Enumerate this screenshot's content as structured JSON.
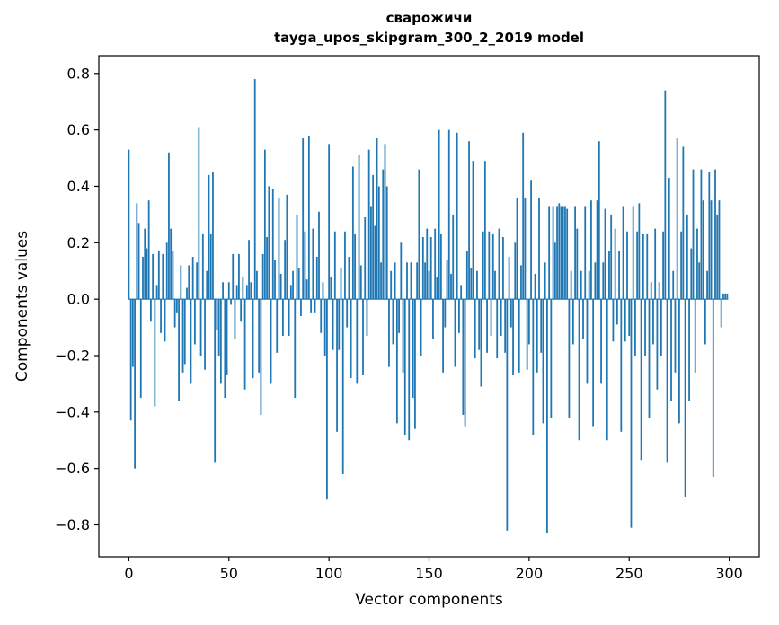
{
  "chart_data": {
    "type": "bar",
    "title": "сварожичи",
    "subtitle": "tayga_upos_skipgram_300_2_2019 model",
    "xlabel": "Vector components",
    "ylabel": "Components values",
    "bar_color": "#1f77b4",
    "xlim": [
      -15,
      315
    ],
    "ylim": [
      -0.913,
      0.863
    ],
    "grid": false,
    "legend": "none",
    "xticks": [
      0,
      50,
      100,
      150,
      200,
      250,
      300
    ],
    "xtick_labels": [
      "0",
      "50",
      "100",
      "150",
      "200",
      "250",
      "300"
    ],
    "yticks": [
      -0.8,
      -0.6,
      -0.4,
      -0.2,
      0.0,
      0.2,
      0.4,
      0.6,
      0.8
    ],
    "ytick_labels": [
      "−0.8",
      "−0.6",
      "−0.4",
      "−0.2",
      "0.0",
      "0.2",
      "0.4",
      "0.6",
      "0.8"
    ],
    "x": "component index 0..299",
    "values": [
      0.53,
      -0.43,
      -0.24,
      -0.6,
      0.34,
      0.27,
      -0.35,
      0.15,
      0.25,
      0.18,
      0.35,
      -0.08,
      0.16,
      -0.38,
      0.05,
      0.17,
      -0.12,
      0.16,
      -0.15,
      0.2,
      0.52,
      0.25,
      0.17,
      -0.1,
      -0.05,
      -0.36,
      0.12,
      -0.26,
      -0.23,
      0.04,
      0.12,
      -0.3,
      0.15,
      -0.16,
      0.13,
      0.61,
      -0.2,
      0.23,
      -0.25,
      0.1,
      0.44,
      0.23,
      0.45,
      -0.58,
      -0.11,
      -0.2,
      -0.3,
      0.06,
      -0.35,
      -0.27,
      0.06,
      -0.02,
      0.16,
      -0.14,
      0.05,
      0.16,
      -0.08,
      0.08,
      -0.32,
      0.05,
      0.21,
      0.06,
      -0.28,
      0.78,
      0.1,
      -0.26,
      -0.41,
      0.16,
      0.53,
      0.22,
      0.4,
      -0.3,
      0.39,
      0.14,
      -0.19,
      0.36,
      0.09,
      -0.13,
      0.21,
      0.37,
      -0.13,
      0.05,
      0.1,
      -0.35,
      0.3,
      0.11,
      -0.06,
      0.57,
      0.24,
      0.07,
      0.58,
      -0.05,
      0.25,
      -0.05,
      0.15,
      0.31,
      -0.12,
      0.06,
      -0.2,
      -0.71,
      0.55,
      0.08,
      -0.18,
      0.24,
      -0.47,
      -0.18,
      0.11,
      -0.62,
      0.24,
      -0.1,
      0.15,
      -0.28,
      0.47,
      0.23,
      -0.3,
      0.51,
      0.12,
      -0.27,
      0.29,
      -0.13,
      0.53,
      0.33,
      0.44,
      0.26,
      0.57,
      0.4,
      0.13,
      0.46,
      0.55,
      0.4,
      -0.24,
      0.1,
      -0.16,
      0.13,
      -0.44,
      -0.12,
      0.2,
      -0.26,
      -0.48,
      0.13,
      -0.5,
      0.13,
      -0.35,
      -0.46,
      0.13,
      0.46,
      -0.2,
      0.22,
      0.13,
      0.25,
      0.1,
      0.22,
      -0.14,
      0.25,
      0.08,
      0.6,
      0.23,
      -0.26,
      -0.1,
      0.14,
      0.6,
      0.09,
      0.3,
      -0.24,
      0.59,
      -0.12,
      0.05,
      -0.41,
      -0.45,
      0.17,
      0.56,
      0.11,
      0.49,
      -0.21,
      0.1,
      -0.18,
      -0.31,
      0.24,
      0.49,
      -0.19,
      0.24,
      -0.13,
      0.23,
      0.1,
      -0.21,
      0.25,
      -0.13,
      0.22,
      -0.19,
      -0.82,
      0.15,
      -0.1,
      -0.27,
      0.2,
      0.36,
      -0.26,
      0.12,
      0.59,
      0.36,
      -0.25,
      -0.16,
      0.42,
      -0.48,
      0.09,
      -0.26,
      0.36,
      -0.19,
      -0.44,
      0.13,
      -0.83,
      0.33,
      -0.42,
      0.33,
      0.2,
      0.33,
      0.34,
      0.33,
      0.33,
      0.33,
      0.32,
      -0.42,
      0.1,
      -0.16,
      0.33,
      0.25,
      -0.5,
      0.1,
      -0.14,
      0.33,
      -0.3,
      0.1,
      0.35,
      -0.45,
      0.13,
      0.35,
      0.56,
      -0.3,
      0.13,
      0.32,
      -0.5,
      0.17,
      0.3,
      -0.15,
      0.25,
      -0.09,
      0.17,
      -0.47,
      0.33,
      -0.15,
      0.24,
      -0.13,
      -0.81,
      0.33,
      -0.2,
      0.24,
      0.34,
      -0.57,
      0.23,
      -0.2,
      0.23,
      -0.42,
      0.06,
      -0.16,
      0.25,
      -0.32,
      0.06,
      -0.2,
      0.24,
      0.74,
      -0.58,
      0.43,
      -0.36,
      0.1,
      -0.26,
      0.57,
      -0.44,
      0.24,
      0.54,
      -0.7,
      0.3,
      -0.36,
      0.18,
      0.46,
      -0.26,
      0.25,
      0.13,
      0.46,
      0.35,
      -0.16,
      0.1,
      0.45,
      0.35,
      -0.63,
      0.46,
      0.3,
      0.35,
      -0.1,
      0.02,
      0.02,
      0.02
    ]
  }
}
